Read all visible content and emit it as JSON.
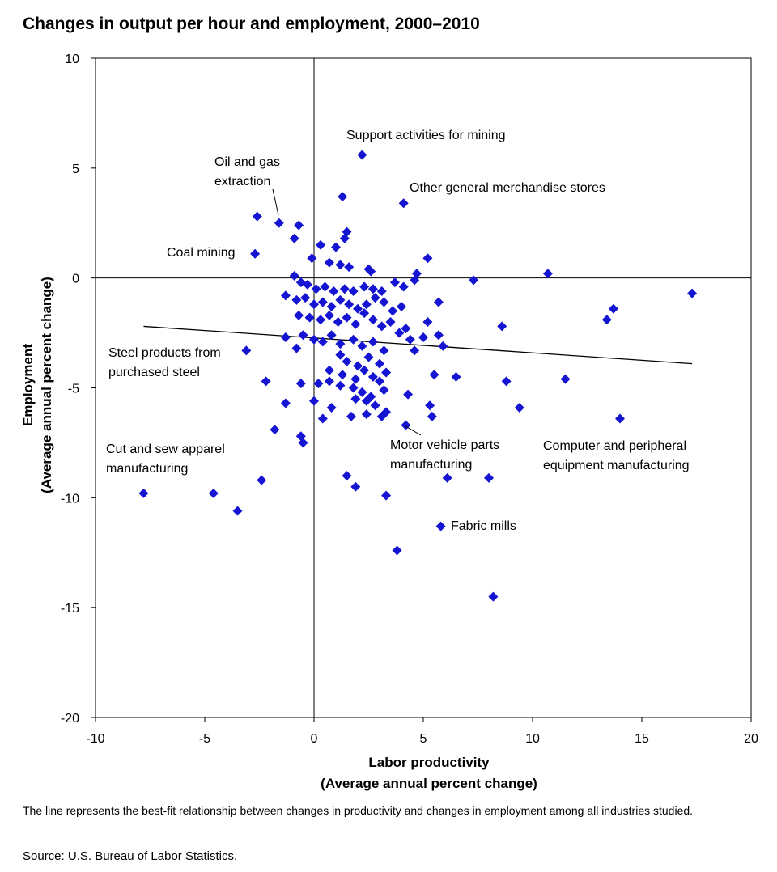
{
  "title": "Changes in output per hour and employment, 2000–2010",
  "chart_data": {
    "type": "scatter",
    "title": "Changes in output per hour and employment, 2000–2010",
    "xlabel": [
      "Labor productivity",
      "(Average annual  percent change)"
    ],
    "ylabel": [
      "Employment",
      "(Average annual  percent change)"
    ],
    "xlim": [
      -10,
      20
    ],
    "ylim": [
      -20,
      10
    ],
    "xticks": [
      -10,
      -5,
      0,
      5,
      10,
      15,
      20
    ],
    "yticks": [
      10,
      5,
      0,
      -5,
      -10,
      -15,
      -20
    ],
    "grid": false,
    "marker_color": "#1414d2",
    "trendline": {
      "x": [
        -7.8,
        17.3
      ],
      "y": [
        -2.2,
        -3.9
      ]
    },
    "points": [
      [
        2.2,
        5.6
      ],
      [
        1.3,
        3.7
      ],
      [
        4.1,
        3.4
      ],
      [
        -2.6,
        2.8
      ],
      [
        -1.6,
        2.5
      ],
      [
        -0.7,
        2.4
      ],
      [
        -0.9,
        1.8
      ],
      [
        1.5,
        2.1
      ],
      [
        1.4,
        1.8
      ],
      [
        0.3,
        1.5
      ],
      [
        1.0,
        1.4
      ],
      [
        -2.7,
        1.1
      ],
      [
        -0.1,
        0.9
      ],
      [
        0.7,
        0.7
      ],
      [
        1.2,
        0.6
      ],
      [
        1.6,
        0.5
      ],
      [
        2.5,
        0.4
      ],
      [
        2.6,
        0.3
      ],
      [
        5.2,
        0.9
      ],
      [
        4.7,
        0.2
      ],
      [
        10.7,
        0.2
      ],
      [
        7.3,
        -0.1
      ],
      [
        -0.9,
        0.1
      ],
      [
        -0.6,
        -0.2
      ],
      [
        -0.3,
        -0.3
      ],
      [
        0.1,
        -0.5
      ],
      [
        0.5,
        -0.4
      ],
      [
        0.9,
        -0.6
      ],
      [
        1.4,
        -0.5
      ],
      [
        1.8,
        -0.6
      ],
      [
        2.3,
        -0.4
      ],
      [
        2.7,
        -0.5
      ],
      [
        3.1,
        -0.6
      ],
      [
        3.7,
        -0.2
      ],
      [
        4.1,
        -0.4
      ],
      [
        4.6,
        -0.1
      ],
      [
        17.3,
        -0.7
      ],
      [
        -1.3,
        -0.8
      ],
      [
        -0.8,
        -1.0
      ],
      [
        -0.4,
        -0.9
      ],
      [
        0.0,
        -1.2
      ],
      [
        0.4,
        -1.1
      ],
      [
        0.8,
        -1.3
      ],
      [
        1.2,
        -1.0
      ],
      [
        1.6,
        -1.2
      ],
      [
        2.0,
        -1.4
      ],
      [
        2.4,
        -1.2
      ],
      [
        2.8,
        -0.9
      ],
      [
        3.2,
        -1.1
      ],
      [
        3.6,
        -1.5
      ],
      [
        4.0,
        -1.3
      ],
      [
        5.7,
        -1.1
      ],
      [
        13.7,
        -1.4
      ],
      [
        13.4,
        -1.9
      ],
      [
        -0.7,
        -1.7
      ],
      [
        -0.2,
        -1.8
      ],
      [
        0.3,
        -1.9
      ],
      [
        0.7,
        -1.7
      ],
      [
        1.1,
        -2.0
      ],
      [
        1.5,
        -1.8
      ],
      [
        1.9,
        -2.1
      ],
      [
        2.3,
        -1.6
      ],
      [
        2.7,
        -1.9
      ],
      [
        3.1,
        -2.2
      ],
      [
        3.5,
        -2.0
      ],
      [
        3.9,
        -2.5
      ],
      [
        4.2,
        -2.3
      ],
      [
        5.2,
        -2.0
      ],
      [
        8.6,
        -2.2
      ],
      [
        -0.5,
        -2.6
      ],
      [
        0.0,
        -2.8
      ],
      [
        0.4,
        -2.9
      ],
      [
        0.8,
        -2.6
      ],
      [
        1.2,
        -3.0
      ],
      [
        1.8,
        -2.8
      ],
      [
        2.2,
        -3.1
      ],
      [
        2.7,
        -2.9
      ],
      [
        3.2,
        -3.3
      ],
      [
        4.4,
        -2.8
      ],
      [
        5.0,
        -2.7
      ],
      [
        5.7,
        -2.6
      ],
      [
        5.9,
        -3.1
      ],
      [
        -1.3,
        -2.7
      ],
      [
        -3.1,
        -3.3
      ],
      [
        -0.8,
        -3.2
      ],
      [
        1.2,
        -3.5
      ],
      [
        1.5,
        -3.8
      ],
      [
        2.0,
        -4.0
      ],
      [
        2.5,
        -3.6
      ],
      [
        3.0,
        -3.9
      ],
      [
        4.6,
        -3.3
      ],
      [
        0.7,
        -4.2
      ],
      [
        1.3,
        -4.4
      ],
      [
        1.9,
        -4.6
      ],
      [
        2.3,
        -4.2
      ],
      [
        2.7,
        -4.5
      ],
      [
        3.3,
        -4.3
      ],
      [
        5.5,
        -4.4
      ],
      [
        6.5,
        -4.5
      ],
      [
        11.5,
        -4.6
      ],
      [
        -2.2,
        -4.7
      ],
      [
        -0.6,
        -4.8
      ],
      [
        0.2,
        -4.8
      ],
      [
        0.7,
        -4.7
      ],
      [
        1.2,
        -4.9
      ],
      [
        1.8,
        -5.0
      ],
      [
        2.2,
        -5.2
      ],
      [
        2.6,
        -5.4
      ],
      [
        3.0,
        -4.7
      ],
      [
        3.2,
        -5.1
      ],
      [
        4.3,
        -5.3
      ],
      [
        8.8,
        -4.7
      ],
      [
        -1.3,
        -5.7
      ],
      [
        0.0,
        -5.6
      ],
      [
        0.8,
        -5.9
      ],
      [
        1.9,
        -5.5
      ],
      [
        2.4,
        -5.6
      ],
      [
        2.8,
        -5.8
      ],
      [
        3.1,
        -6.3
      ],
      [
        3.3,
        -6.1
      ],
      [
        5.3,
        -5.8
      ],
      [
        5.4,
        -6.3
      ],
      [
        9.4,
        -5.9
      ],
      [
        14.0,
        -6.4
      ],
      [
        -0.6,
        -7.2
      ],
      [
        -0.5,
        -7.5
      ],
      [
        -1.8,
        -6.9
      ],
      [
        0.4,
        -6.4
      ],
      [
        1.7,
        -6.3
      ],
      [
        2.4,
        -6.2
      ],
      [
        4.2,
        -6.7
      ],
      [
        6.1,
        -9.1
      ],
      [
        8.0,
        -9.1
      ],
      [
        1.5,
        -9.0
      ],
      [
        1.9,
        -9.5
      ],
      [
        3.3,
        -9.9
      ],
      [
        -2.4,
        -9.2
      ],
      [
        -4.6,
        -9.8
      ],
      [
        -7.8,
        -9.8
      ],
      [
        -3.5,
        -10.6
      ],
      [
        5.8,
        -11.3
      ],
      [
        3.8,
        -12.4
      ],
      [
        8.2,
        -14.5
      ]
    ],
    "annotations": [
      {
        "id": "support-mining",
        "lines": [
          "Support activities for mining"
        ]
      },
      {
        "id": "oil-gas",
        "lines": [
          "Oil and gas",
          "extraction"
        ]
      },
      {
        "id": "other-merch",
        "lines": [
          "Other general merchandise stores"
        ]
      },
      {
        "id": "coal",
        "lines": [
          "Coal mining"
        ]
      },
      {
        "id": "steel",
        "lines": [
          "Steel products from",
          "purchased steel"
        ]
      },
      {
        "id": "cut-sew",
        "lines": [
          "Cut and sew apparel",
          "manufacturing"
        ]
      },
      {
        "id": "motor",
        "lines": [
          "Motor vehicle parts",
          "manufacturing"
        ]
      },
      {
        "id": "computer",
        "lines": [
          "Computer and peripheral",
          "equipment manufacturing"
        ]
      },
      {
        "id": "fabric",
        "lines": [
          "Fabric mills"
        ]
      }
    ]
  },
  "footnote": "The line represents the best-fit relationship between changes in productivity and changes in employment among all industries studied.",
  "source": "Source: U.S. Bureau of Labor Statistics."
}
